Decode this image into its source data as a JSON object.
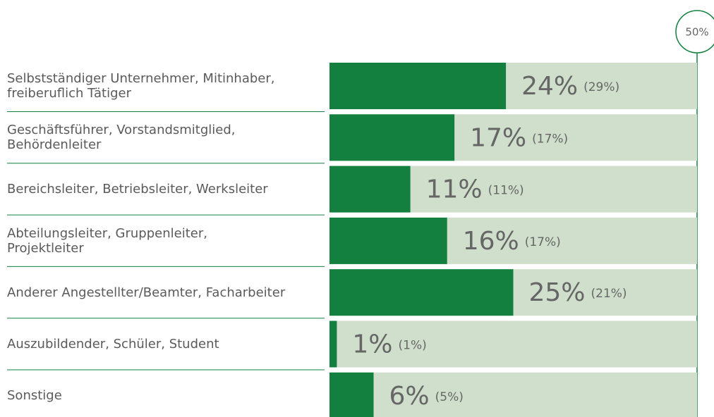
{
  "chart_data": {
    "type": "hbar",
    "categories": [
      "Selbstständiger Unternehmer, Mitinhaber,\nfreiberuflich Tätiger",
      "Geschäftsführer, Vorstandsmitglied,\nBehördenleiter",
      "Bereichsleiter, Betriebsleiter, Werksleiter",
      "Abteilungsleiter, Gruppenleiter,\nProjektleiter",
      "Anderer Angestellter/Beamter, Facharbeiter",
      "Auszubildender, Schüler, Student",
      "Sonstige"
    ],
    "values": [
      24,
      17,
      11,
      16,
      25,
      1,
      6
    ],
    "value_labels": [
      "24%",
      "17%",
      "11%",
      "16%",
      "25%",
      "1%",
      "6%"
    ],
    "comparison_values": [
      29,
      17,
      11,
      17,
      21,
      1,
      5
    ],
    "comparison_labels": [
      "(29%)",
      "(17%)",
      "(11%)",
      "(17%)",
      "(21%)",
      "(1%)",
      "(5%)"
    ],
    "color": "#13803f",
    "track_color": "#cfdfcb",
    "xlim": [
      0,
      50
    ],
    "xticks": [
      {
        "value": 50,
        "label": "50%"
      }
    ]
  }
}
